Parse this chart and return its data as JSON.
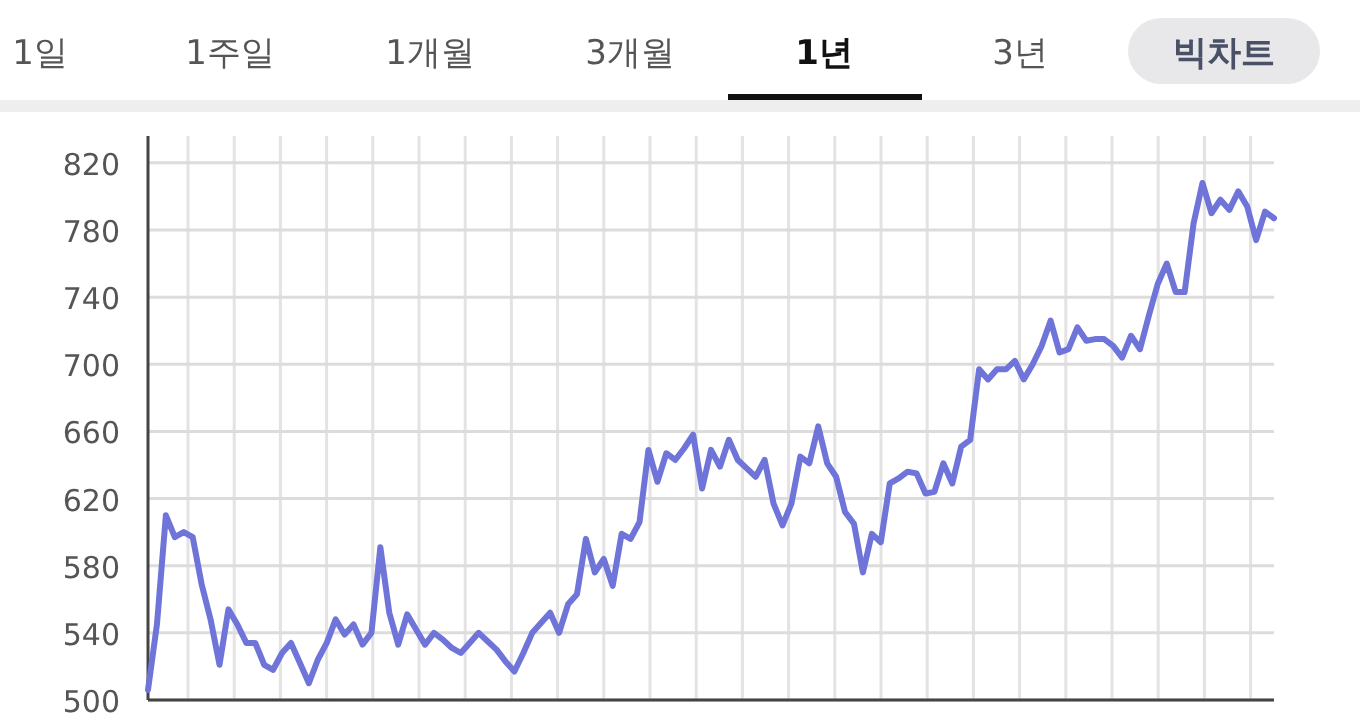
{
  "chart_data": {
    "type": "line",
    "annotations": [
      "1일",
      "1주일",
      "1개월",
      "3개월",
      "**1년**",
      "3년",
      "빅차트"
    ],
    "categories": [
      null,
      null,
      null,
      null,
      null,
      null,
      null,
      null,
      null,
      null,
      null,
      null,
      null,
      null,
      null,
      null,
      null,
      null,
      null,
      null,
      null,
      null,
      null,
      null,
      null,
      null,
      null,
      null,
      null,
      null,
      null,
      null,
      null,
      null,
      null,
      null,
      null,
      null,
      null,
      null,
      null,
      null,
      null,
      null,
      null,
      null,
      null,
      null,
      null,
      null,
      null,
      null,
      null,
      null,
      null,
      null,
      null,
      null,
      null,
      null,
      null,
      null,
      null,
      null,
      null,
      null,
      null,
      null,
      null,
      null,
      null,
      null,
      null,
      null,
      null,
      null,
      null,
      null,
      null,
      null,
      null,
      null,
      null,
      null,
      null,
      null,
      null,
      null,
      null,
      null,
      null,
      null,
      null,
      null,
      null,
      null,
      null,
      null,
      null,
      null,
      null,
      null,
      null,
      null,
      null,
      null,
      null,
      null,
      null,
      null,
      null,
      null,
      null,
      null,
      null,
      null,
      null,
      null,
      null,
      null,
      null,
      null,
      null,
      null,
      null,
      null,
      null
    ],
    "values": [
      506,
      545,
      610,
      597,
      600,
      597,
      569,
      548,
      521,
      554,
      545,
      534,
      534,
      521,
      518,
      528,
      534,
      522,
      510,
      524,
      534,
      548,
      539,
      545,
      533,
      540,
      591,
      552,
      533,
      551,
      542,
      533,
      540,
      536,
      531,
      528,
      534,
      540,
      535,
      530,
      523,
      517,
      528,
      540,
      546,
      552,
      540,
      557,
      563,
      596,
      576,
      584,
      568,
      599,
      596,
      606,
      649,
      630,
      647,
      643,
      650,
      658,
      626,
      649,
      639,
      655,
      643,
      638,
      633,
      643,
      617,
      604,
      617,
      645,
      641,
      663,
      641,
      633,
      612,
      605,
      576,
      599,
      594,
      629,
      632,
      636,
      635,
      623,
      624,
      641,
      629,
      651,
      655,
      697,
      691,
      697,
      697,
      702,
      691,
      700,
      711,
      726,
      707,
      709,
      722,
      714,
      715,
      715,
      711,
      704,
      717,
      709,
      729,
      748,
      760,
      743,
      743,
      784,
      808,
      790,
      798,
      792,
      803,
      794,
      774,
      791,
      787
    ],
    "color": "#6f74d9",
    "ylim": [
      500,
      836
    ],
    "yticks": [
      500,
      540,
      580,
      620,
      660,
      700,
      740,
      780,
      820
    ],
    "grid": true
  }
}
